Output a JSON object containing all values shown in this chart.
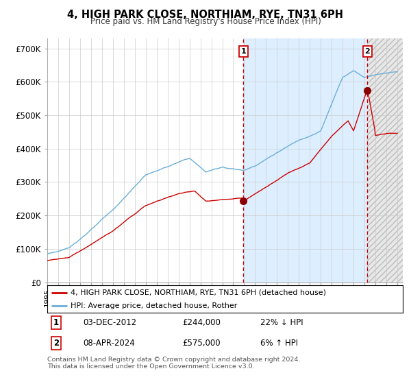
{
  "title": "4, HIGH PARK CLOSE, NORTHIAM, RYE, TN31 6PH",
  "subtitle": "Price paid vs. HM Land Registry's House Price Index (HPI)",
  "xlim_start": 1995.0,
  "xlim_end": 2027.5,
  "ylim": [
    0,
    730000
  ],
  "yticks": [
    0,
    100000,
    200000,
    300000,
    400000,
    500000,
    600000,
    700000
  ],
  "ytick_labels": [
    "£0",
    "£100K",
    "£200K",
    "£300K",
    "£400K",
    "£500K",
    "£600K",
    "£700K"
  ],
  "hpi_color": "#6baed6",
  "price_color": "#cc0000",
  "transaction1_x": 2012.92,
  "transaction1_y": 244000,
  "transaction2_x": 2024.27,
  "transaction2_y": 575000,
  "vline_color": "#cc0000",
  "marker_color": "#8b0000",
  "shade_color": "#ddeeff",
  "legend_entries": [
    "4, HIGH PARK CLOSE, NORTHIAM, RYE, TN31 6PH (detached house)",
    "HPI: Average price, detached house, Rother"
  ],
  "annotation1_date": "03-DEC-2012",
  "annotation1_price": "£244,000",
  "annotation1_hpi": "22% ↓ HPI",
  "annotation2_date": "08-APR-2024",
  "annotation2_price": "£575,000",
  "annotation2_hpi": "6% ↑ HPI",
  "footer": "Contains HM Land Registry data © Crown copyright and database right 2024.\nThis data is licensed under the Open Government Licence v3.0.",
  "background_color": "#ffffff",
  "grid_color": "#cccccc"
}
